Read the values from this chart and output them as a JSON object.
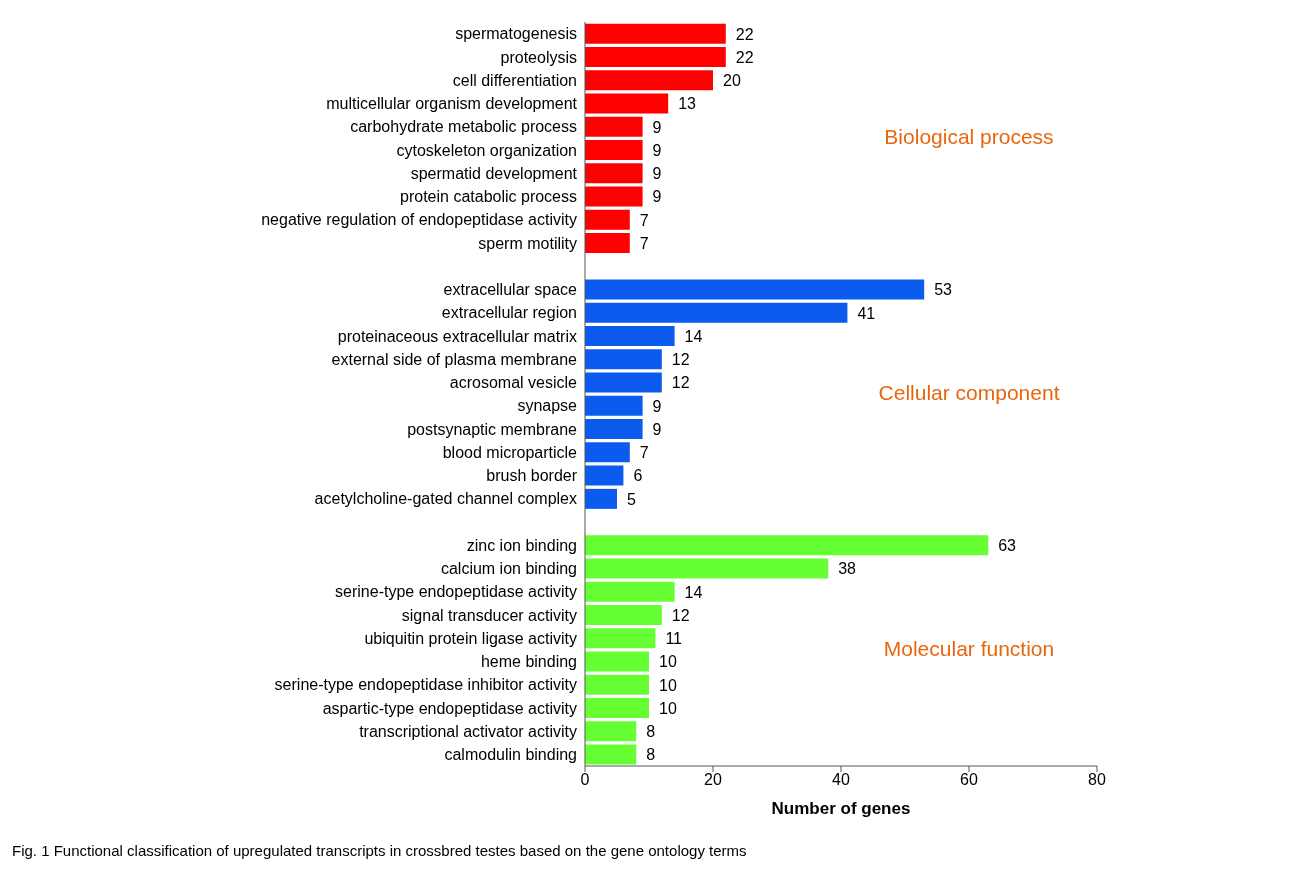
{
  "chart_data": {
    "type": "bar",
    "orientation": "horizontal",
    "xlabel": "Number of genes",
    "categories": [
      "spermatogenesis",
      "proteolysis",
      "cell differentiation",
      "multicellular organism development",
      "carbohydrate metabolic process",
      "cytoskeleton organization",
      "spermatid development",
      "protein catabolic process",
      "negative regulation of endopeptidase activity",
      "sperm motility",
      null,
      "extracellular space",
      "extracellular region",
      "proteinaceous extracellular matrix",
      "external side of plasma membrane",
      "acrosomal vesicle",
      "synapse",
      "postsynaptic membrane",
      "blood microparticle",
      "brush border",
      "acetylcholine-gated channel complex",
      null,
      "zinc ion binding",
      "calcium ion binding",
      "serine-type endopeptidase activity",
      "signal transducer activity",
      "ubiquitin protein ligase activity",
      "heme binding",
      "serine-type endopeptidase inhibitor activity",
      "aspartic-type endopeptidase activity",
      "transcriptional activator activity",
      "calmodulin binding"
    ],
    "series": [
      {
        "name": "Biological process",
        "color": "#ff0000",
        "values": [
          22,
          22,
          20,
          13,
          9,
          9,
          9,
          9,
          7,
          7,
          null,
          null,
          null,
          null,
          null,
          null,
          null,
          null,
          null,
          null,
          null,
          null,
          null,
          null,
          null,
          null,
          null,
          null,
          null,
          null,
          null,
          null
        ]
      },
      {
        "name": "Cellular component",
        "color": "#0b5bef",
        "values": [
          null,
          null,
          null,
          null,
          null,
          null,
          null,
          null,
          null,
          null,
          null,
          53,
          41,
          14,
          12,
          12,
          9,
          9,
          7,
          6,
          5,
          null,
          null,
          null,
          null,
          null,
          null,
          null,
          null,
          null,
          null,
          null
        ]
      },
      {
        "name": "Molecular function",
        "color": "#66ff33",
        "values": [
          null,
          null,
          null,
          null,
          null,
          null,
          null,
          null,
          null,
          null,
          null,
          null,
          null,
          null,
          null,
          null,
          null,
          null,
          null,
          null,
          null,
          null,
          63,
          38,
          14,
          12,
          11,
          10,
          10,
          10,
          8,
          8
        ]
      }
    ],
    "xlim": [
      0,
      80
    ],
    "xticks": [
      0,
      20,
      40,
      60,
      80
    ],
    "data_labels": true,
    "grid": false,
    "annotations": [
      "Fig. 1 Functional classification of upregulated transcripts in crossbred testes based on the gene ontology terms"
    ]
  }
}
